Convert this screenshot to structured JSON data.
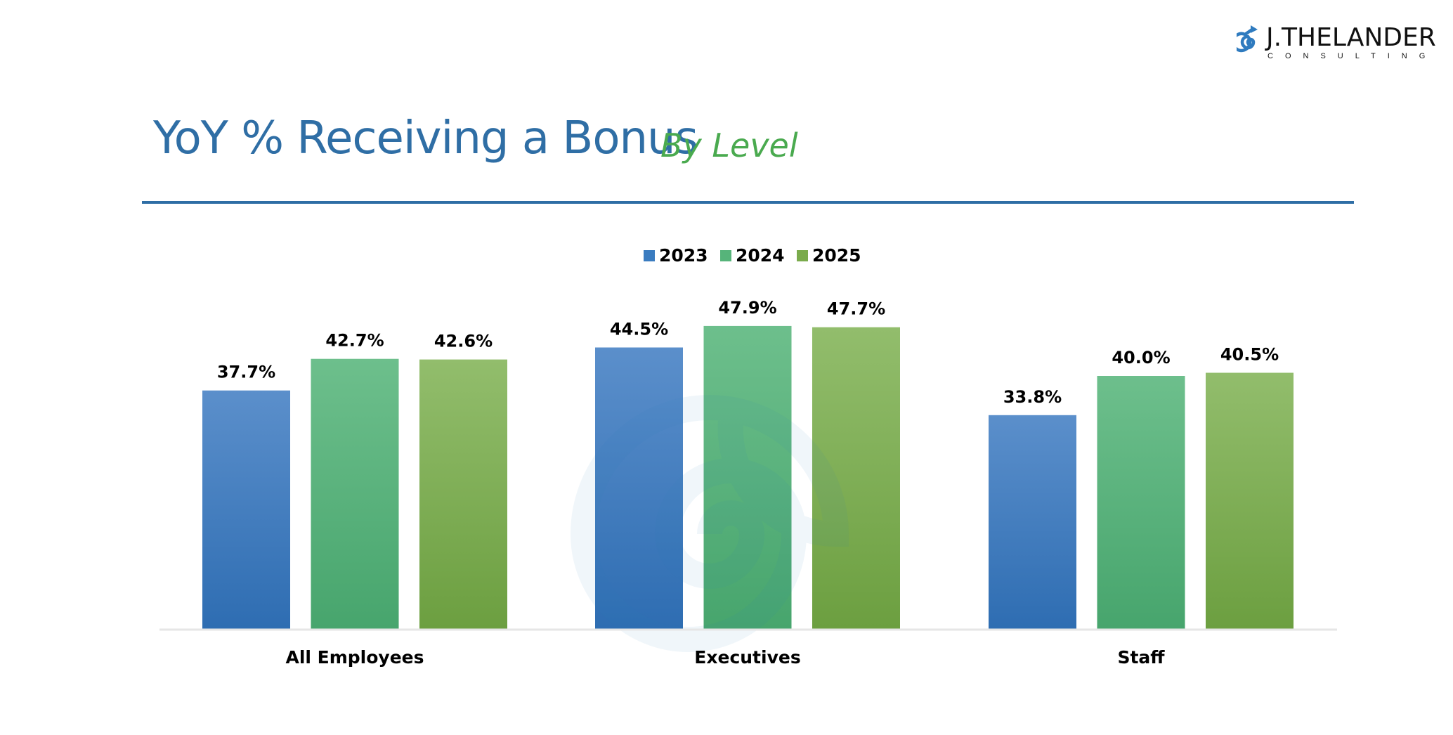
{
  "slide": {
    "title": "YoY % Receiving a Bonus",
    "subtitle": "By Level"
  },
  "logo": {
    "name": "J.THELANDER",
    "tagline": "CONSULTING",
    "icon": "spiral-arrow-icon",
    "color": "#2f7bbf"
  },
  "colors": {
    "title": "#2f6ea5",
    "subtitle": "#4aaa4f"
  },
  "chart_data": {
    "type": "bar",
    "categories": [
      "All Employees",
      "Executives",
      "Staff"
    ],
    "series": [
      {
        "name": "2023",
        "values": [
          37.7,
          44.5,
          33.8
        ],
        "labels": [
          "37.7%",
          "44.5%",
          "33.8%"
        ],
        "color": "#3a7cc0"
      },
      {
        "name": "2024",
        "values": [
          42.7,
          47.9,
          40.0
        ],
        "labels": [
          "42.7%",
          "47.9%",
          "40.0%"
        ],
        "color": "#56b47a"
      },
      {
        "name": "2025",
        "values": [
          42.6,
          47.7,
          40.5
        ],
        "labels": [
          "42.6%",
          "47.7%",
          "40.5%"
        ],
        "color": "#7aab4c"
      }
    ],
    "ylim": [
      0,
      50
    ],
    "grid": false,
    "legend": "top-center",
    "unit": "%"
  }
}
